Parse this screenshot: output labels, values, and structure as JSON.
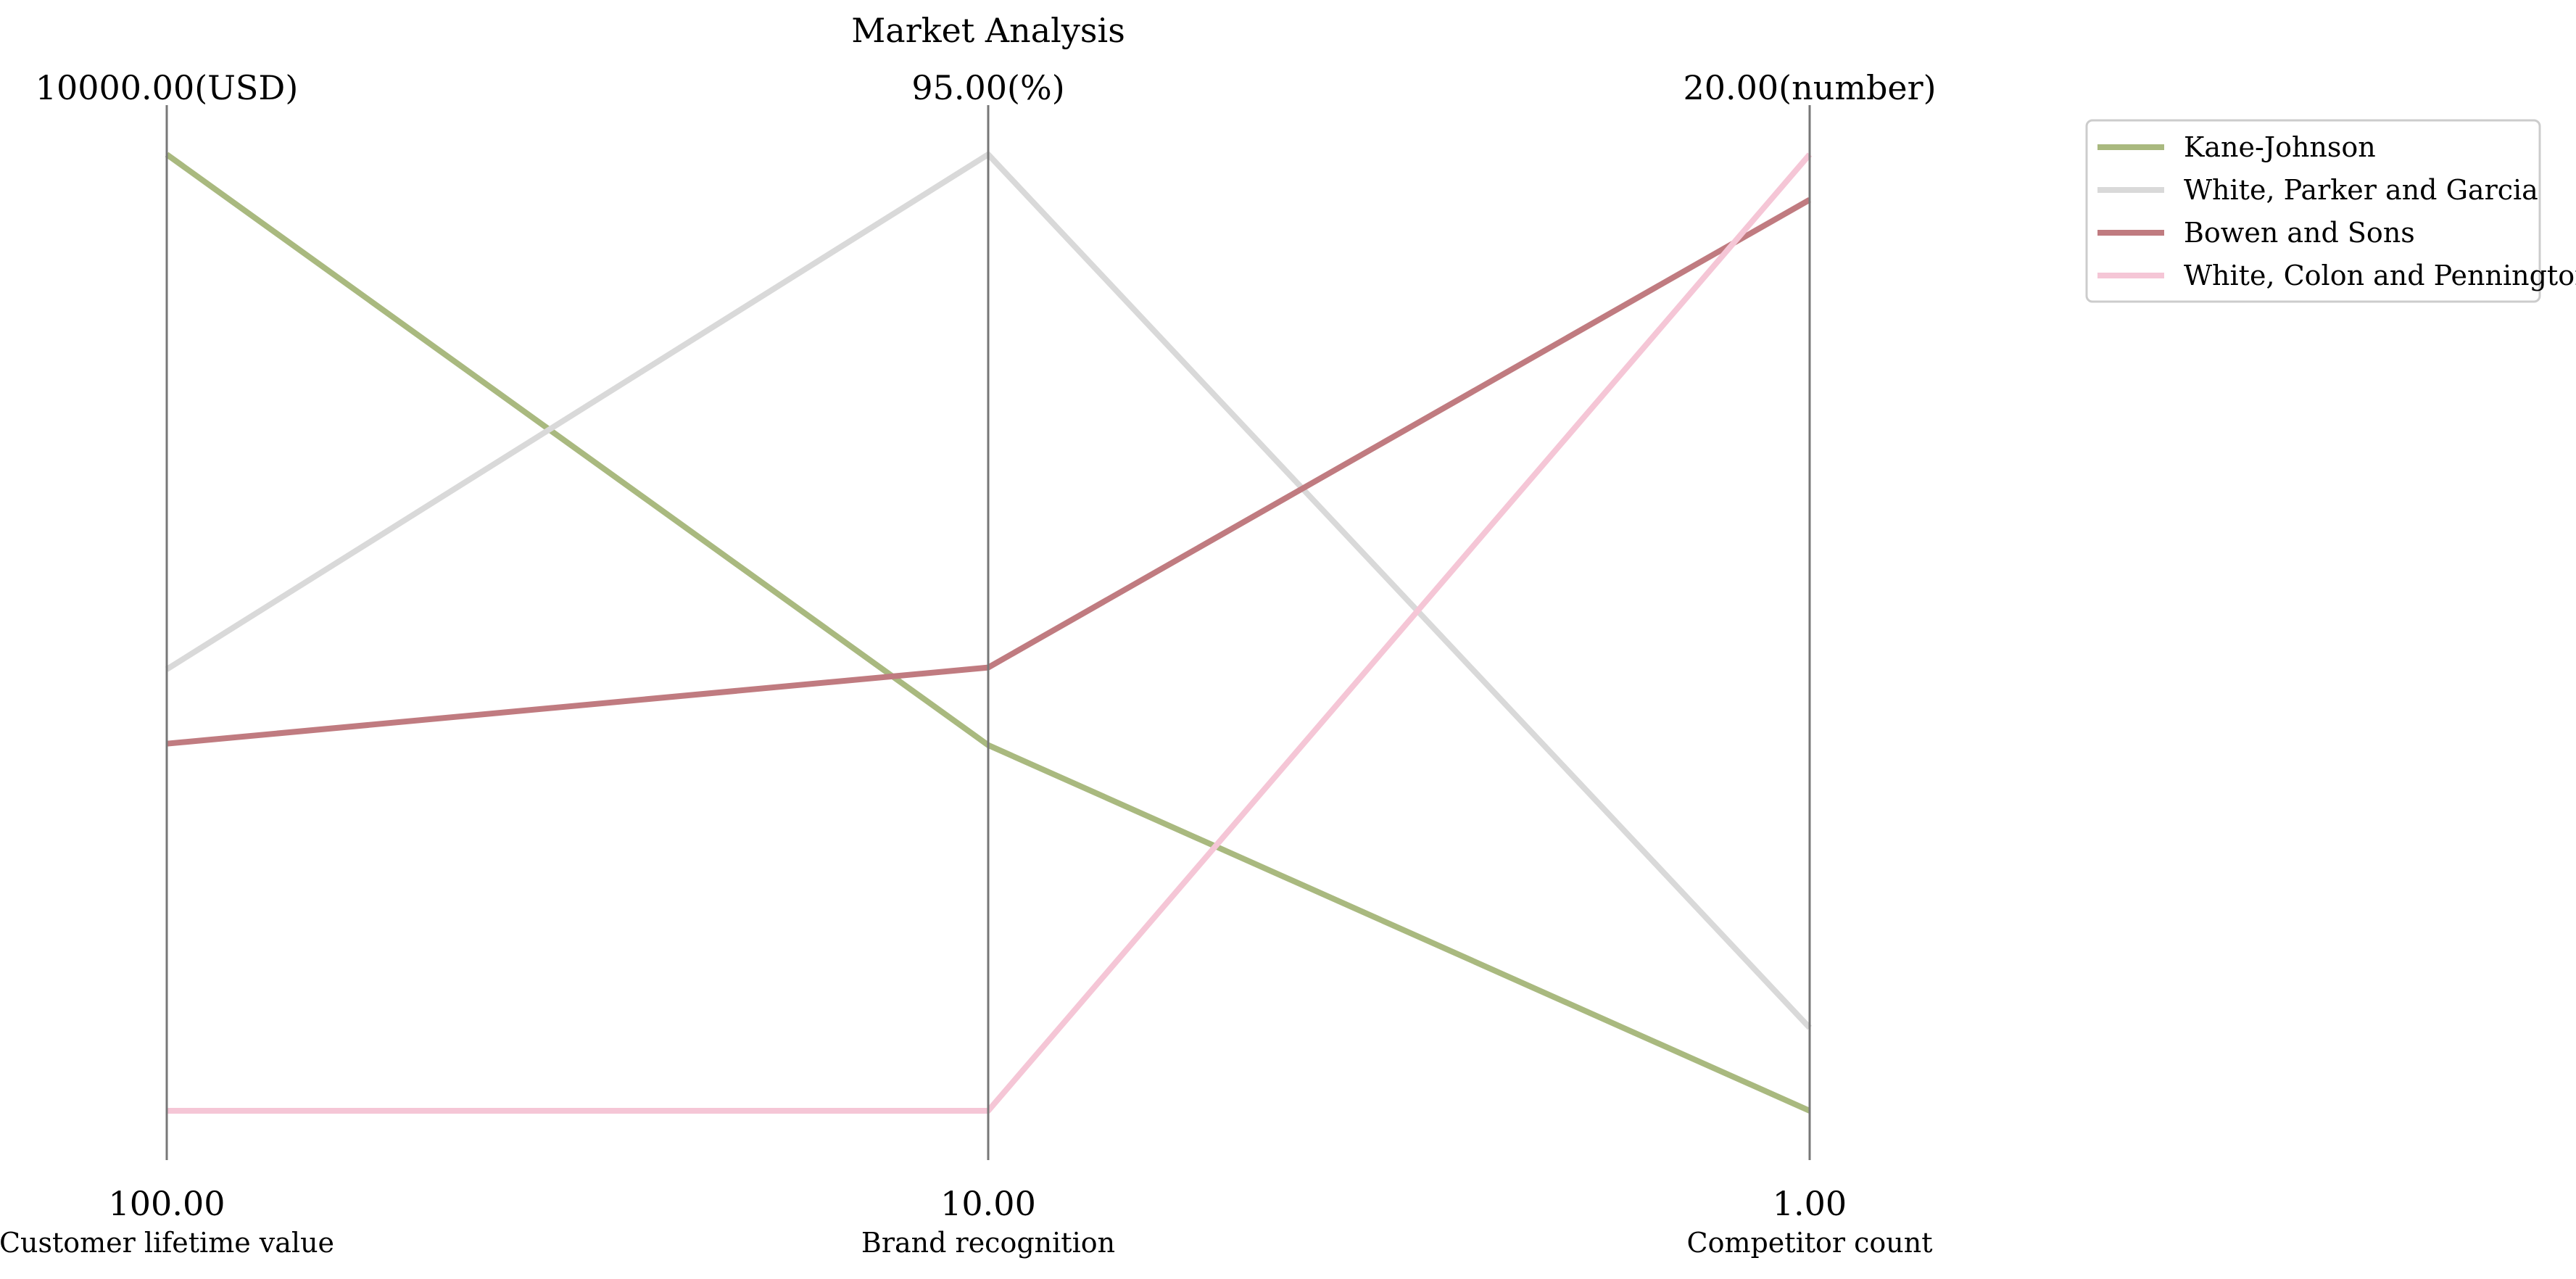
{
  "chart_data": {
    "type": "parallel-coordinates",
    "title": "Market Analysis",
    "axes": [
      {
        "label": "Customer lifetime value",
        "min": 100,
        "max": 10000,
        "min_label": "100.00",
        "max_label": "10000.00(USD)"
      },
      {
        "label": "Brand recognition",
        "min": 10,
        "max": 95,
        "min_label": "10.00",
        "max_label": "95.00(%)"
      },
      {
        "label": "Competitor count",
        "min": 1,
        "max": 20,
        "min_label": "1.00",
        "max_label": "20.00(number)"
      }
    ],
    "series": [
      {
        "name": "Kane-Johnson",
        "color": "#a9b97f",
        "values": [
          10000,
          42.5,
          1
        ]
      },
      {
        "name": "White, Parker and Garcia",
        "color": "#d9d9d9",
        "values": [
          4670,
          95,
          2.65
        ]
      },
      {
        "name": "Bowen and Sons",
        "color": "#c07b80",
        "values": [
          3900,
          49.4,
          19.1
        ]
      },
      {
        "name": "White, Colon and Pennington",
        "color": "#f5c6d6",
        "values": [
          100,
          10,
          20
        ]
      }
    ],
    "legend_position": "top-right",
    "grid": false
  }
}
